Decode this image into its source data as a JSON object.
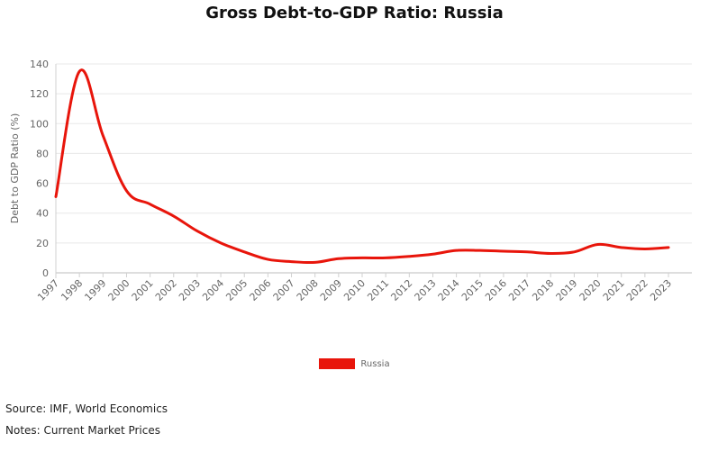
{
  "chart_data": {
    "type": "line",
    "title": "Gross Debt-to-GDP Ratio: Russia",
    "xlabel": "",
    "ylabel": "Debt to GDP Ratio (%)",
    "ylim": [
      0,
      140
    ],
    "yticks": [
      0,
      20,
      40,
      60,
      80,
      100,
      120,
      140
    ],
    "categories": [
      "1997",
      "1998",
      "1999",
      "2000",
      "2001",
      "2002",
      "2003",
      "2004",
      "2005",
      "2006",
      "2007",
      "2008",
      "2009",
      "2010",
      "2011",
      "2012",
      "2013",
      "2014",
      "2015",
      "2016",
      "2017",
      "2018",
      "2019",
      "2020",
      "2021",
      "2022",
      "2023"
    ],
    "series": [
      {
        "name": "Russia",
        "color": "#e8150b",
        "values": [
          51,
          135,
          92,
          55,
          46,
          38,
          28,
          20,
          14,
          9,
          7.5,
          7,
          9.5,
          10,
          10,
          11,
          12.5,
          15,
          15,
          14.5,
          14,
          13,
          14,
          19,
          17,
          16,
          17
        ]
      }
    ],
    "grid": true,
    "legend_position": "bottom"
  },
  "footer": {
    "source": "Source: IMF, World Economics",
    "notes": "Notes: Current Market Prices"
  }
}
